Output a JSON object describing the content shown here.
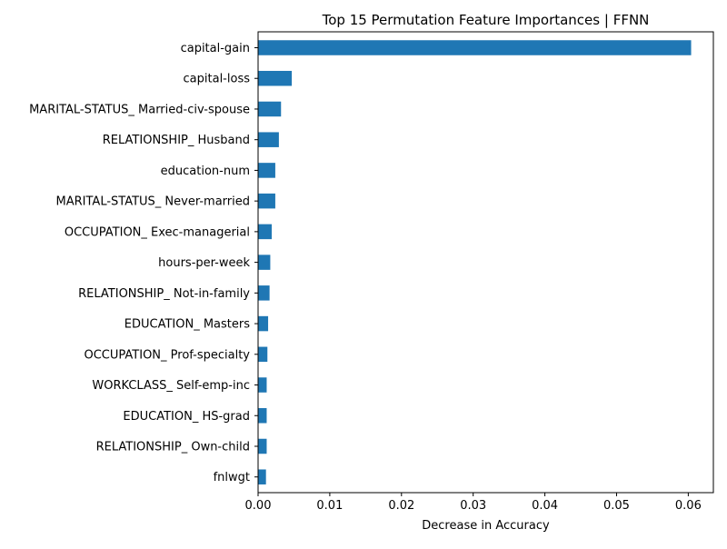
{
  "chart_data": {
    "type": "bar",
    "orientation": "horizontal",
    "title": "Top 15 Permutation Feature Importances | FFNN",
    "xlabel": "Decrease in Accuracy",
    "ylabel": "",
    "xlim": [
      0,
      0.0635
    ],
    "xticks": [
      0.0,
      0.01,
      0.02,
      0.03,
      0.04,
      0.05,
      0.06
    ],
    "xtick_labels": [
      "0.00",
      "0.01",
      "0.02",
      "0.03",
      "0.04",
      "0.05",
      "0.06"
    ],
    "grid": false,
    "bar_color": "#1f77b4",
    "categories": [
      "capital-gain",
      "capital-loss",
      "MARITAL-STATUS_ Married-civ-spouse",
      "RELATIONSHIP_ Husband",
      "education-num",
      "MARITAL-STATUS_ Never-married",
      "OCCUPATION_ Exec-managerial",
      "hours-per-week",
      "RELATIONSHIP_ Not-in-family",
      "EDUCATION_ Masters",
      "OCCUPATION_ Prof-specialty",
      "WORKCLASS_ Self-emp-inc",
      "EDUCATION_ HS-grad",
      "RELATIONSHIP_ Own-child",
      "fnlwgt"
    ],
    "values": [
      0.0604,
      0.0047,
      0.0032,
      0.0029,
      0.0024,
      0.0024,
      0.0019,
      0.0017,
      0.0016,
      0.0014,
      0.0013,
      0.0012,
      0.0012,
      0.0012,
      0.0011
    ]
  }
}
